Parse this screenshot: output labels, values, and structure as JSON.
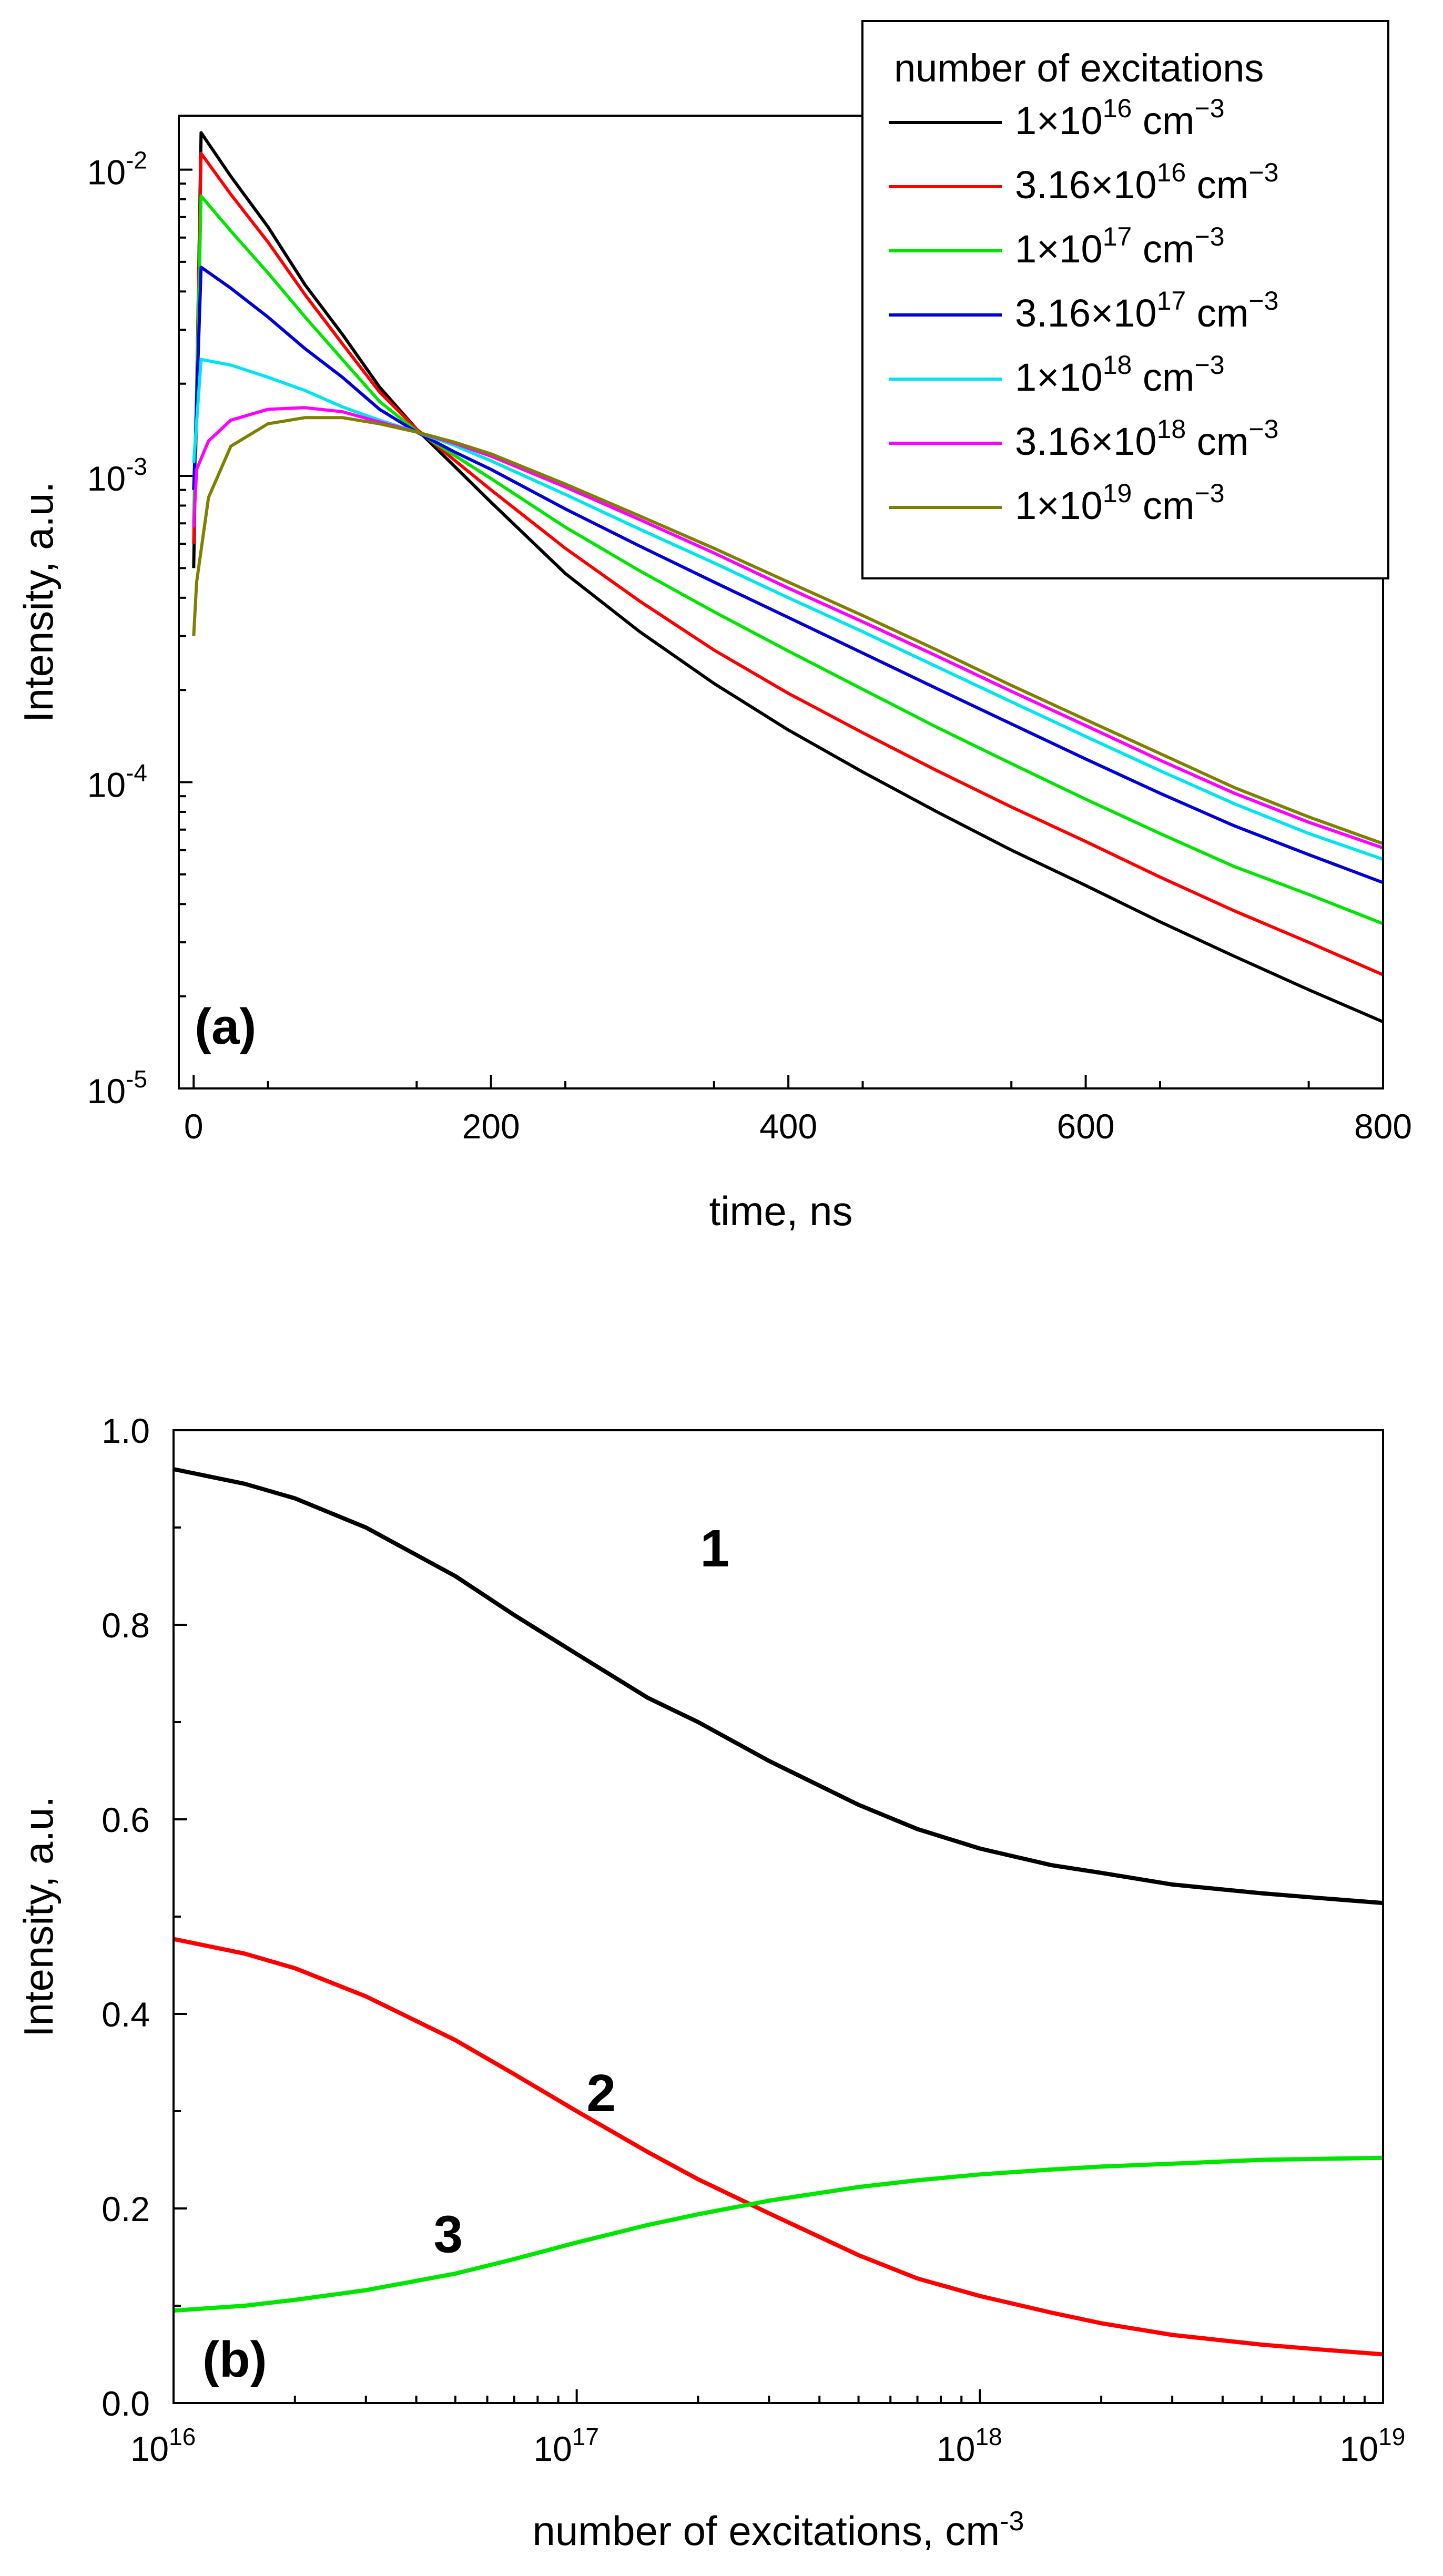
{
  "chart_data": [
    {
      "type": "line",
      "panel_label": "(a)",
      "xlabel": "time, ns",
      "ylabel": "Intensity, a.u.",
      "xscale": "linear",
      "yscale": "log",
      "xlim": [
        -10,
        800
      ],
      "ylim": [
        1e-05,
        0.015
      ],
      "x_ticks": [
        {
          "value": 0,
          "label": "0"
        },
        {
          "value": 200,
          "label": "200"
        },
        {
          "value": 400,
          "label": "400"
        },
        {
          "value": 600,
          "label": "600"
        },
        {
          "value": 800,
          "label": "800"
        }
      ],
      "y_ticks": [
        {
          "value": 1e-05,
          "base": "10",
          "exp": "-5"
        },
        {
          "value": 0.0001,
          "base": "10",
          "exp": "-4"
        },
        {
          "value": 0.001,
          "base": "10",
          "exp": "-3"
        },
        {
          "value": 0.01,
          "base": "10",
          "exp": "-2"
        }
      ],
      "grid": false,
      "legend": {
        "title": "number of excitations",
        "placement": "top-right",
        "unit_text": " cm",
        "unit_exp": "−3"
      },
      "series": [
        {
          "name": "1×10^16 cm^-3",
          "label_base": "1×10",
          "label_exp": "16",
          "color": "#000000",
          "x": [
            0,
            5,
            25,
            50,
            75,
            100,
            125,
            150,
            175,
            200,
            250,
            300,
            350,
            400,
            450,
            500,
            550,
            600,
            650,
            700,
            750,
            800
          ],
          "y": [
            0.0005,
            0.0132,
            0.0095,
            0.0065,
            0.0042,
            0.0029,
            0.00195,
            0.00142,
            0.00108,
            0.00082,
            0.00048,
            0.00031,
            0.00021,
            0.000148,
            0.000108,
            8e-05,
            6e-05,
            4.6e-05,
            3.5e-05,
            2.7e-05,
            2.1e-05,
            1.65e-05
          ]
        },
        {
          "name": "3.16×10^16 cm^-3",
          "label_base": "3.16×10",
          "label_exp": "16",
          "color": "#ff0000",
          "x": [
            0,
            5,
            25,
            50,
            75,
            100,
            125,
            150,
            175,
            200,
            250,
            300,
            350,
            400,
            450,
            500,
            550,
            600,
            650,
            700,
            750,
            800
          ],
          "y": [
            0.0006,
            0.0113,
            0.0083,
            0.0058,
            0.0039,
            0.0027,
            0.00188,
            0.00142,
            0.00113,
            0.0009,
            0.00058,
            0.00039,
            0.00027,
            0.000195,
            0.000145,
            0.000109,
            8.3e-05,
            6.4e-05,
            4.9e-05,
            3.8e-05,
            3e-05,
            2.35e-05
          ]
        },
        {
          "name": "1×10^17 cm^-3",
          "label_base": "1×10",
          "label_exp": "17",
          "color": "#00e600",
          "x": [
            0,
            5,
            25,
            50,
            75,
            100,
            125,
            150,
            175,
            200,
            250,
            300,
            350,
            400,
            450,
            500,
            550,
            600,
            650,
            700,
            750,
            800
          ],
          "y": [
            0.0007,
            0.0082,
            0.0063,
            0.0046,
            0.0033,
            0.0024,
            0.00175,
            0.0014,
            0.00117,
            0.00098,
            0.00068,
            0.00049,
            0.00036,
            0.000268,
            0.000201,
            0.000151,
            0.000115,
            8.8e-05,
            6.8e-05,
            5.3e-05,
            4.3e-05,
            3.45e-05
          ]
        },
        {
          "name": "3.16×10^17 cm^-3",
          "label_base": "3.16×10",
          "label_exp": "17",
          "color": "#0000dd",
          "x": [
            0,
            5,
            25,
            50,
            75,
            100,
            125,
            150,
            175,
            200,
            250,
            300,
            350,
            400,
            450,
            500,
            550,
            600,
            650,
            700,
            750,
            800
          ],
          "y": [
            0.0009,
            0.0048,
            0.0041,
            0.0033,
            0.0026,
            0.0021,
            0.00165,
            0.00139,
            0.0012,
            0.00105,
            0.00078,
            0.00059,
            0.00045,
            0.000345,
            0.000264,
            0.000202,
            0.000155,
            0.000119,
            9.2e-05,
            7.2e-05,
            5.8e-05,
            4.7e-05
          ]
        },
        {
          "name": "1×10^18 cm^-3",
          "label_base": "1×10",
          "label_exp": "18",
          "color": "#00e5ee",
          "x": [
            0,
            5,
            25,
            50,
            75,
            100,
            125,
            150,
            175,
            200,
            250,
            300,
            350,
            400,
            450,
            500,
            550,
            600,
            650,
            700,
            750,
            800
          ],
          "y": [
            0.0011,
            0.0024,
            0.0023,
            0.0021,
            0.0019,
            0.00168,
            0.00152,
            0.00139,
            0.00126,
            0.00112,
            0.00087,
            0.00067,
            0.00052,
            0.0004,
            0.00031,
            0.000238,
            0.000183,
            0.000141,
            0.000109,
            8.5e-05,
            6.8e-05,
            5.6e-05
          ]
        },
        {
          "name": "3.16×10^18 cm^-3",
          "label_base": "3.16×10",
          "label_exp": "18",
          "color": "#ff00ff",
          "x": [
            0,
            2,
            10,
            25,
            50,
            75,
            100,
            125,
            150,
            175,
            200,
            250,
            300,
            350,
            400,
            450,
            500,
            550,
            600,
            650,
            700,
            750,
            800
          ],
          "y": [
            0.00068,
            0.00105,
            0.0013,
            0.00152,
            0.00165,
            0.00167,
            0.00162,
            0.0015,
            0.00139,
            0.00128,
            0.00116,
            0.00092,
            0.00072,
            0.00056,
            0.00043,
            0.000334,
            0.000258,
            0.000198,
            0.000153,
            0.000118,
            9.2e-05,
            7.4e-05,
            6.1e-05
          ]
        },
        {
          "name": "1×10^19 cm^-3",
          "label_base": "1×10",
          "label_exp": "19",
          "color": "#808000",
          "x": [
            0,
            2,
            10,
            25,
            50,
            75,
            100,
            125,
            150,
            175,
            200,
            250,
            300,
            350,
            400,
            450,
            500,
            550,
            600,
            650,
            700,
            750,
            800
          ],
          "y": [
            0.0003,
            0.00045,
            0.00085,
            0.00125,
            0.00148,
            0.00155,
            0.00155,
            0.00148,
            0.00139,
            0.00129,
            0.00118,
            0.00094,
            0.00074,
            0.00058,
            0.00045,
            0.00035,
            0.00027,
            0.000207,
            0.00016,
            0.000124,
            9.6e-05,
            7.7e-05,
            6.3e-05
          ]
        }
      ]
    },
    {
      "type": "line",
      "panel_label": "(b)",
      "xlabel_base": "number of excitations, cm",
      "xlabel_exp": "-3",
      "ylabel": "Intensity, a.u.",
      "xscale": "log",
      "yscale": "linear",
      "xlim": [
        1e+16,
        1e+19
      ],
      "ylim": [
        0,
        1.0
      ],
      "x_ticks": [
        {
          "value": 1e+16,
          "base": "10",
          "exp": "16"
        },
        {
          "value": 1e+17,
          "base": "10",
          "exp": "17"
        },
        {
          "value": 1e+18,
          "base": "10",
          "exp": "18"
        },
        {
          "value": 1e+19,
          "base": "10",
          "exp": "19"
        }
      ],
      "y_ticks": [
        {
          "value": 0.0,
          "label": "0.0"
        },
        {
          "value": 0.2,
          "label": "0.2"
        },
        {
          "value": 0.4,
          "label": "0.4"
        },
        {
          "value": 0.6,
          "label": "0.6"
        },
        {
          "value": 0.8,
          "label": "0.8"
        },
        {
          "value": 1.0,
          "label": "1.0"
        }
      ],
      "grid": false,
      "series": [
        {
          "name": "1",
          "tag": "1",
          "color": "#000000",
          "tag_at": [
            2.2e+17,
            0.86
          ],
          "x": [
            1e+16,
            1.5e+16,
            2e+16,
            3e+16,
            5e+16,
            7e+16,
            1e+17,
            1.5e+17,
            2e+17,
            3e+17,
            5e+17,
            7e+17,
            1e+18,
            1.5e+18,
            2e+18,
            3e+18,
            5e+18,
            7e+18,
            1e+19
          ],
          "y": [
            0.96,
            0.945,
            0.93,
            0.9,
            0.85,
            0.81,
            0.77,
            0.725,
            0.7,
            0.66,
            0.615,
            0.59,
            0.57,
            0.553,
            0.545,
            0.533,
            0.524,
            0.519,
            0.514
          ]
        },
        {
          "name": "2",
          "tag": "2",
          "color": "#ff0000",
          "tag_at": [
            1.15e+17,
            0.3
          ],
          "x": [
            1e+16,
            1.5e+16,
            2e+16,
            3e+16,
            5e+16,
            7e+16,
            1e+17,
            1.5e+17,
            2e+17,
            3e+17,
            5e+17,
            7e+17,
            1e+18,
            1.5e+18,
            2e+18,
            3e+18,
            5e+18,
            7e+18,
            1e+19
          ],
          "y": [
            0.477,
            0.462,
            0.447,
            0.418,
            0.373,
            0.338,
            0.3,
            0.258,
            0.23,
            0.195,
            0.152,
            0.128,
            0.11,
            0.093,
            0.082,
            0.07,
            0.06,
            0.055,
            0.05
          ]
        },
        {
          "name": "3",
          "tag": "3",
          "color": "#00e600",
          "tag_at": [
            4.8e+16,
            0.155
          ],
          "x": [
            1e+16,
            1.5e+16,
            2e+16,
            3e+16,
            5e+16,
            7e+16,
            1e+17,
            1.5e+17,
            2e+17,
            3e+17,
            5e+17,
            7e+17,
            1e+18,
            1.5e+18,
            2e+18,
            3e+18,
            5e+18,
            7e+18,
            1e+19
          ],
          "y": [
            0.095,
            0.1,
            0.106,
            0.116,
            0.133,
            0.148,
            0.165,
            0.183,
            0.194,
            0.208,
            0.222,
            0.229,
            0.235,
            0.24,
            0.243,
            0.246,
            0.25,
            0.251,
            0.252
          ]
        }
      ]
    }
  ]
}
